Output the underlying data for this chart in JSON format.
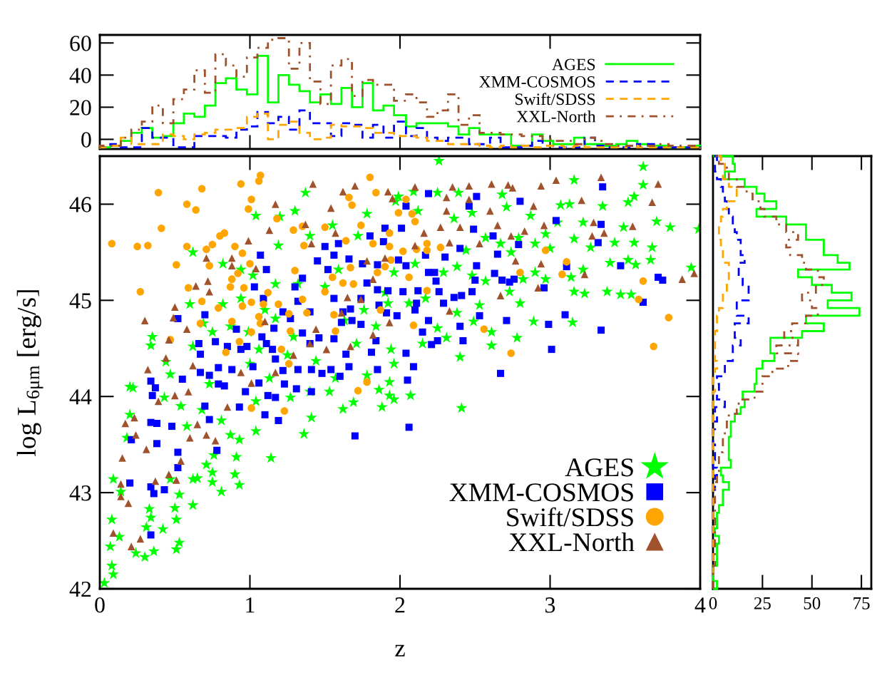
{
  "chart_data": [
    {
      "type": "histogram",
      "bins": [
        0,
        0.07,
        0.14,
        0.21,
        0.28,
        0.35,
        0.42,
        0.49,
        0.56,
        0.63,
        0.7,
        0.77,
        0.84,
        0.91,
        0.98,
        1.05,
        1.12,
        1.19,
        1.26,
        1.33,
        1.4,
        1.47,
        1.54,
        1.61,
        1.68,
        1.75,
        1.82,
        1.89,
        1.96,
        2.04,
        2.11,
        2.18,
        2.25,
        2.32,
        2.39,
        2.46,
        2.53,
        2.6,
        2.67,
        2.74,
        2.81,
        2.88,
        2.95,
        3.02,
        3.09,
        3.16,
        3.23,
        3.3,
        3.37,
        3.44,
        3.51,
        3.58,
        3.65,
        3.72,
        3.79,
        3.86,
        3.93,
        4.0
      ],
      "series": [
        {
          "name": "AGES",
          "color": "#00ff00",
          "line_style": "solid",
          "values": [
            -5,
            -4,
            -1,
            4,
            7,
            1,
            2,
            10,
            16,
            14,
            21,
            35,
            38,
            31,
            28,
            52,
            23,
            40,
            34,
            30,
            23,
            28,
            22,
            32,
            20,
            35,
            18,
            21,
            15,
            8,
            10,
            10,
            10,
            8,
            3,
            7,
            3,
            3,
            3,
            -4,
            -4,
            3,
            -1,
            -3,
            -3,
            1,
            -3,
            -3,
            -4,
            -3,
            -1,
            -3,
            -4,
            -4,
            -5,
            -5,
            -4
          ]
        },
        {
          "name": "XMM-COSMOS",
          "color": "#0000ff",
          "line_style": "dashed",
          "values": [
            -5,
            -3,
            -5,
            -5,
            7,
            1,
            1,
            -5,
            -5,
            2,
            2,
            2,
            1,
            6,
            8,
            17,
            10,
            14,
            6,
            18,
            10,
            10,
            2,
            10,
            9,
            1,
            9,
            1,
            11,
            2,
            7,
            1,
            -1,
            1,
            1,
            -3,
            -3,
            1,
            -5,
            -5,
            -4,
            -1,
            -4,
            -5,
            -5,
            -5,
            1,
            -4,
            -5,
            -5,
            -5,
            -3,
            -3,
            -5,
            -5,
            -5,
            -5
          ]
        },
        {
          "name": "Swift/SDSS",
          "color": "#ffa500",
          "line_style": "dashed",
          "values": [
            -5,
            -4,
            1,
            -3,
            -3,
            -3,
            3,
            2,
            0,
            3,
            4,
            6,
            6,
            7,
            14,
            16,
            0,
            9,
            11,
            4,
            0,
            1,
            9,
            8,
            8,
            7,
            4,
            4,
            2,
            2,
            1,
            -1,
            -1,
            -3,
            -3,
            -3,
            -4,
            -5,
            -4,
            -5,
            -4,
            -5,
            -4,
            -4,
            -5,
            -4,
            -5,
            -5,
            -5,
            -5,
            -4,
            -5,
            -5,
            -5,
            -5,
            -5,
            -5
          ]
        },
        {
          "name": "XXL-North",
          "color": "#a0522d",
          "line_style": "dashdot",
          "values": [
            -4,
            -4,
            1,
            6,
            11,
            21,
            10,
            25,
            31,
            43,
            29,
            53,
            46,
            39,
            51,
            57,
            62,
            63,
            44,
            60,
            36,
            22,
            46,
            50,
            27,
            37,
            34,
            34,
            24,
            28,
            23,
            14,
            18,
            28,
            9,
            15,
            4,
            4,
            3,
            3,
            2,
            2,
            0,
            -1,
            -1,
            -3,
            1,
            -1,
            -3,
            -4,
            -4,
            -4,
            -4,
            -3,
            -4,
            -4,
            -4
          ]
        }
      ],
      "xlim": [
        0,
        4
      ],
      "xticks": [
        {
          "value": 0,
          "label": null
        },
        {
          "value": 1,
          "label": null
        },
        {
          "value": 2,
          "label": null
        },
        {
          "value": 3,
          "label": null
        },
        {
          "value": 4,
          "label": null
        }
      ],
      "ylim": [
        -6,
        65
      ],
      "yticks": [
        0,
        20,
        40,
        60
      ],
      "tick_labels": "y",
      "legend": "right"
    },
    {
      "type": "scatter",
      "xlabel": "z",
      "ylabel": "log L$_{6μm}$ [erg/s]",
      "xlim": [
        0,
        4
      ],
      "xticks": [
        0,
        1,
        2,
        3,
        4
      ],
      "ylim": [
        42,
        46.5
      ],
      "yticks": [
        42,
        43,
        44,
        45,
        46
      ],
      "legend": "bottom right",
      "series": [
        {
          "name": "AGES",
          "color": "#00ff00",
          "marker": "star",
          "x": [
            0.03,
            0.09,
            0.08,
            0.07,
            0.13,
            0.08,
            0.09,
            0.14,
            0.24,
            0.3,
            0.36,
            0.31,
            0.42,
            0.51,
            0.53,
            0.51,
            0.53,
            0.62,
            0.5,
            0.33,
            0.34,
            0.47,
            0.62,
            0.65,
            0.75,
            0.81,
            0.9,
            0.93,
            0.91,
            0.71,
            0.75,
            0.76,
            1.14,
            1.04,
            0.93,
            1.36,
            1.41,
            1.62,
            1.69,
            1.53,
            1.27,
            0.2,
            0.22,
            0.2,
            0.18,
            0.35,
            0.34,
            0.44,
            0.47,
            0.43,
            0.54,
            0.58,
            0.68,
            0.81,
            0.87,
            0.73,
            0.62,
            0.62,
            0.82,
            0.6,
            0.69,
            0.75,
            0.87,
            0.94,
            1.02,
            1.04,
            1.2,
            1.3,
            1.19,
            1.1,
            1.17,
            1.29,
            1.25,
            1.13,
            1.0,
            1.04,
            1.4,
            1.44,
            1.57,
            1.78,
            1.86,
            1.93,
            1.88,
            1.5,
            1.59,
            1.63,
            1.71,
            1.76,
            1.84,
            1.9,
            1.72,
            1.78,
            1.55,
            1.4,
            1.32,
            1.17,
            0.94,
            0.82,
            0.99,
            1.06,
            1.37,
            1.97,
            2.26,
            3.62,
            3.16,
            2.09,
            2.25,
            2.39,
            2.68,
            1.99,
            3.35,
            3.52,
            3.62,
            3.56,
            3.13,
            3.07,
            2.87,
            2.71,
            2.48,
            2.36,
            2.12,
            3.71,
            3.8,
            3.99,
            3.49,
            3.22,
            3.05,
            3.16,
            2.97,
            2.9,
            2.79,
            2.67,
            2.57,
            2.44,
            2.74,
            3.0,
            3.27,
            3.43,
            3.56,
            3.68,
            3.52,
            3.67,
            3.57,
            3.94,
            3.4,
            3.22,
            3.14,
            2.97,
            2.9,
            2.82,
            2.73,
            3.16,
            3.23,
            3.38,
            3.47,
            3.54,
            2.57,
            2.48,
            2.38,
            2.29,
            2.1,
            1.96,
            1.92,
            2.06,
            2.17,
            2.38,
            2.53,
            2.8,
            2.89,
            3.15,
            2.78,
            2.61,
            2.49,
            2.4,
            2.31,
            2.15,
            1.94,
            1.96,
            1.93,
            2.07,
            1.96,
            2.41,
            2.25,
            2.61
          ],
          "values": [
            42.06,
            42.15,
            42.24,
            42.44,
            42.54,
            42.72,
            43.14,
            43.01,
            42.37,
            42.33,
            42.39,
            42.64,
            42.62,
            42.41,
            42.48,
            42.72,
            42.98,
            42.87,
            42.84,
            42.83,
            42.74,
            43.14,
            43.14,
            43.15,
            43.11,
            43.01,
            43.19,
            43.08,
            43.37,
            43.29,
            43.21,
            43.39,
            43.36,
            43.64,
            43.55,
            43.61,
            43.78,
            43.87,
            43.94,
            44.05,
            43.99,
            44.1,
            44.09,
            43.81,
            43.57,
            44.62,
            44.53,
            44.36,
            44.23,
            43.99,
            43.9,
            43.69,
            43.86,
            43.75,
            43.6,
            44.13,
            44.52,
            45.5,
            45.38,
            44.96,
            44.76,
            44.67,
            44.73,
            45.02,
            45.26,
            45.88,
            45.87,
            45.93,
            45.57,
            44.9,
            44.81,
            44.62,
            44.43,
            44.19,
            44.34,
            43.95,
            44.05,
            44.37,
            44.19,
            44.22,
            44.07,
            44.01,
            43.89,
            45.14,
            45.32,
            44.79,
            44.55,
            44.9,
            44.73,
            45.08,
            45.67,
            45.9,
            45.78,
            45.67,
            45.17,
            45.17,
            45.32,
            44.96,
            44.67,
            44.49,
            46.12,
            46.03,
            46.45,
            46.39,
            46.25,
            46.13,
            46.12,
            46.12,
            46.1,
            46.08,
            45.98,
            46.02,
            46.2,
            46.08,
            46.0,
            45.99,
            45.88,
            45.97,
            45.91,
            45.85,
            45.93,
            45.82,
            45.76,
            45.74,
            45.76,
            45.81,
            45.81,
            45.64,
            45.69,
            45.59,
            45.65,
            45.59,
            45.65,
            45.52,
            45.5,
            45.54,
            45.55,
            45.6,
            45.6,
            45.55,
            45.42,
            45.42,
            45.37,
            45.34,
            45.39,
            45.32,
            45.24,
            45.22,
            45.29,
            45.22,
            45.09,
            45.09,
            45.07,
            45.09,
            45.06,
            45.06,
            45.2,
            45.26,
            45.35,
            45.29,
            45.38,
            45.29,
            44.97,
            44.97,
            45.02,
            44.87,
            44.95,
            44.97,
            44.78,
            44.77,
            44.61,
            44.53,
            44.78,
            44.41,
            44.61,
            44.55,
            44.49,
            44.34,
            44.15,
            44.01,
            43.97,
            43.88,
            44.71,
            44.67
          ]
        },
        {
          "name": "XMM-COSMOS",
          "color": "#0000ff",
          "marker": "square",
          "x": [
            0.2,
            0.34,
            0.21,
            0.34,
            0.36,
            0.43,
            0.38,
            0.34,
            0.38,
            0.48,
            0.52,
            0.52,
            0.35,
            0.37,
            0.34,
            0.55,
            0.52,
            0.7,
            0.66,
            0.67,
            0.77,
            0.79,
            0.67,
            0.73,
            0.7,
            0.73,
            0.78,
            0.85,
            0.88,
            0.91,
            0.94,
            0.98,
            1.02,
            0.97,
            0.93,
            0.83,
            0.79,
            1.03,
            1.07,
            1.11,
            1.09,
            1.08,
            1.16,
            1.11,
            1.15,
            1.17,
            1.06,
            1.12,
            1.1,
            1.19,
            1.17,
            1.23,
            1.22,
            1.31,
            1.41,
            1.32,
            1.41,
            1.35,
            1.3,
            1.32,
            1.4,
            1.35,
            1.27,
            1.22,
            1.45,
            1.52,
            1.5,
            1.59,
            1.56,
            1.66,
            1.75,
            1.8,
            1.9,
            1.89,
            1.85,
            1.78,
            1.85,
            1.74,
            1.56,
            1.62,
            1.61,
            1.68,
            1.74,
            1.67,
            1.56,
            1.46,
            1.4,
            1.48,
            1.54,
            1.6,
            1.64,
            1.66,
            1.84,
            1.81,
            1.85,
            1.7,
            1.86,
            1.91,
            2.04,
            2.01,
            2.19,
            2.51,
            2.46,
            2.8,
            3.04,
            3.34,
            3.35,
            2.49,
            2.62,
            2.79,
            2.4,
            2.3,
            2.17,
            1.99,
            2.04,
            2.65,
            2.51,
            2.63,
            2.68,
            2.73,
            2.76,
            2.5,
            2.48,
            2.41,
            2.36,
            2.19,
            2.23,
            2.24,
            2.12,
            2.26,
            2.29,
            2.11,
            1.92,
            2.02,
            1.98,
            2.1,
            2.15,
            2.19,
            2.4,
            2.42,
            2.25,
            2.21,
            2.53,
            2.71,
            2.96,
            3.1,
            2.99,
            3.01,
            3.11,
            3.32,
            3.47,
            3.72,
            3.75,
            3.62,
            3.34,
            2.67,
            2.04,
            2.09,
            2.05,
            2.06
          ],
          "values": [
            43.1,
            42.56,
            43.55,
            43.06,
            42.99,
            43.03,
            43.51,
            43.73,
            43.72,
            43.69,
            43.42,
            43.26,
            44.01,
            44.09,
            44.16,
            44.18,
            44.81,
            44.85,
            44.55,
            44.44,
            44.57,
            44.3,
            44.25,
            44.22,
            43.9,
            43.76,
            43.44,
            44.52,
            44.28,
            44.7,
            44.49,
            44.52,
            44.31,
            44.05,
            43.89,
            44.11,
            44.13,
            45.14,
            45.47,
            45.32,
            45.02,
            44.62,
            44.71,
            44.55,
            44.49,
            44.39,
            44.14,
            44.01,
            43.81,
            43.75,
            43.99,
            44.13,
            44.27,
            44.08,
            44.05,
            44.28,
            44.28,
            45.23,
            45.14,
            44.99,
            44.88,
            44.66,
            44.81,
            44.88,
            45.41,
            45.32,
            45.56,
            45.59,
            45.47,
            45.43,
            45.38,
            45.67,
            45.75,
            45.61,
            45.37,
            45.18,
            45.11,
            45.02,
            45.02,
            44.88,
            44.77,
            44.79,
            44.75,
            44.91,
            44.6,
            44.61,
            44.55,
            44.24,
            44.28,
            44.21,
            44.44,
            44.31,
            44.58,
            44.46,
            44.28,
            43.59,
            44.95,
            44.87,
            45.98,
            45.75,
            46.11,
            46.08,
            45.98,
            46.03,
            45.83,
            45.79,
            46.18,
            45.74,
            45.67,
            45.58,
            45.54,
            45.45,
            45.47,
            45.42,
            45.36,
            45.48,
            45.36,
            45.28,
            45.21,
            45.19,
            45.22,
            45.21,
            45.09,
            45.05,
            45.03,
            45.29,
            45.29,
            45.2,
            45.1,
            45.09,
            44.97,
            44.97,
            45.1,
            45.09,
            44.84,
            44.9,
            44.67,
            44.79,
            44.73,
            44.58,
            44.58,
            44.54,
            44.84,
            44.79,
            45.13,
            44.85,
            44.75,
            44.49,
            45.35,
            45.6,
            45.36,
            45.24,
            45.21,
            44.98,
            44.69,
            44.24,
            44.45,
            44.31,
            44.17,
            43.68
          ]
        },
        {
          "name": "Swift/SDSS",
          "color": "#ffa500",
          "marker": "circle",
          "x": [
            0.08,
            0.25,
            0.32,
            0.39,
            0.41,
            0.27,
            0.51,
            0.58,
            0.64,
            0.68,
            0.58,
            0.71,
            0.75,
            0.73,
            0.59,
            0.68,
            0.67,
            0.47,
            0.8,
            0.83,
            0.9,
            0.94,
            1.01,
            0.99,
            1.07,
            1.06,
            0.95,
            1.0,
            0.88,
            0.87,
            0.92,
            0.96,
            0.79,
            0.95,
            1.01,
            1.09,
            1.06,
            1.07,
            1.01,
            0.88,
            0.93,
            0.84,
            1.01,
            1.23,
            1.18,
            1.29,
            1.35,
            1.5,
            1.36,
            1.3,
            1.35,
            1.38,
            1.27,
            1.21,
            1.26,
            1.12,
            1.19,
            1.26,
            1.55,
            1.5,
            1.56,
            1.57,
            1.62,
            1.67,
            1.69,
            1.64,
            1.78,
            1.72,
            1.8,
            1.84,
            1.66,
            1.68,
            1.74,
            1.82,
            1.85,
            1.9,
            1.93,
            1.87,
            2.04,
            1.99,
            2.08,
            2.1,
            1.93,
            2.02,
            2.11,
            2.18,
            2.18,
            2.27,
            1.94,
            2.06,
            2.18,
            2.09,
            2.56,
            2.74,
            2.8,
            2.97,
            3.08,
            3.11,
            3.62,
            3.59,
            3.79,
            3.69
          ],
          "values": [
            45.59,
            45.56,
            45.57,
            46.12,
            45.75,
            45.09,
            45.37,
            46.0,
            45.94,
            46.16,
            45.56,
            45.53,
            45.58,
            45.36,
            45.13,
            44.99,
            44.76,
            44.59,
            45.67,
            45.7,
            45.56,
            46.21,
            46.05,
            45.95,
            46.3,
            46.24,
            45.49,
            45.38,
            45.22,
            45.14,
            45.28,
            45.13,
            44.92,
            44.94,
            44.98,
            44.96,
            44.83,
            44.76,
            44.67,
            44.78,
            44.57,
            44.46,
            43.88,
            43.85,
            45.85,
            45.73,
            45.77,
            45.76,
            45.57,
            45.31,
            45.01,
            44.87,
            44.68,
            44.49,
            44.34,
            45.08,
            44.96,
            44.86,
            45.24,
            45.09,
            44.85,
            44.68,
            45.18,
            45.34,
            45.17,
            45.62,
            44.15,
            44.06,
            46.28,
            46.12,
            46.07,
            45.99,
            45.78,
            45.59,
            45.29,
            45.35,
            45.7,
            44.9,
            46.05,
            45.91,
            45.9,
            45.82,
            45.56,
            45.51,
            45.53,
            45.59,
            45.52,
            45.55,
            45.42,
            45.24,
            45.1,
            44.74,
            44.7,
            44.45,
            45.29,
            45.52,
            45.27,
            45.4,
            45.2,
            45.01,
            44.82,
            44.52
          ]
        },
        {
          "name": "XXL-North",
          "color": "#a0522d",
          "marker": "triangle",
          "x": [
            0.09,
            0.14,
            0.14,
            0.19,
            0.15,
            0.17,
            0.21,
            0.27,
            0.23,
            0.3,
            0.32,
            0.24,
            0.31,
            0.37,
            0.46,
            0.51,
            0.39,
            0.5,
            0.44,
            0.49,
            0.46,
            0.5,
            0.58,
            0.64,
            0.71,
            0.72,
            0.73,
            0.88,
            0.88,
            0.99,
            1.17,
            1.42,
            1.54,
            1.62,
            1.7,
            1.92,
            1.37,
            1.41,
            1.57,
            1.13,
            1.04,
            1.1,
            0.62,
            0.59,
            0.65,
            0.77,
            0.6,
            0.71,
            0.54,
            0.85,
            0.94,
            1.01,
            1.17,
            1.29,
            1.4,
            1.44,
            1.51,
            1.61,
            1.65,
            1.74,
            1.82,
            1.78,
            1.9,
            1.95,
            1.93,
            1.82,
            1.67,
            2.1,
            2.31,
            2.35,
            2.46,
            2.61,
            2.72,
            2.75,
            2.94,
            3.04,
            3.34,
            3.72,
            3.68,
            3.21,
            2.89,
            2.6,
            2.46,
            2.31,
            2.4,
            2.27,
            2.16,
            2.96,
            3.29,
            3.55,
            3.36,
            3.28,
            2.83,
            2.74,
            2.65,
            2.53,
            2.33,
            2.1,
            2.77,
            2.94,
            3.23,
            2.92,
            2.67,
            2.33,
            3.88,
            3.96
          ],
          "values": [
            42.58,
            43.09,
            42.96,
            42.89,
            43.36,
            43.72,
            42.44,
            42.52,
            43.78,
            44.79,
            44.28,
            43.6,
            43.45,
            43.12,
            43.19,
            43.13,
            43.95,
            44.01,
            44.4,
            44.82,
            44.59,
            44.93,
            44.7,
            45.15,
            45.44,
            45.2,
            45.09,
            45.44,
            45.36,
            45.62,
            46.0,
            46.21,
            45.96,
            46.13,
            46.19,
            46.13,
            45.79,
            45.59,
            45.7,
            45.73,
            45.33,
            44.78,
            44.32,
            44.05,
            43.71,
            43.54,
            43.57,
            43.6,
            43.33,
            43.89,
            44.25,
            44.14,
            44.25,
            44.43,
            44.55,
            44.7,
            44.49,
            44.87,
            45.03,
            45.01,
            45.22,
            45.41,
            45.44,
            46.06,
            44.77,
            44.64,
            44.52,
            46.18,
            46.07,
            46.18,
            46.19,
            46.21,
            46.2,
            46.17,
            46.19,
            46.25,
            46.28,
            46.21,
            46.02,
            46.04,
            45.98,
            45.93,
            46.05,
            45.93,
            45.76,
            45.76,
            45.7,
            45.78,
            45.81,
            45.77,
            45.7,
            45.67,
            45.72,
            45.67,
            45.78,
            45.59,
            45.6,
            45.57,
            45.41,
            45.38,
            45.27,
            45.13,
            45.05,
            44.89,
            45.22,
            45.28
          ]
        }
      ]
    },
    {
      "type": "histogram",
      "orientation": "horizontal",
      "bins": [
        42,
        42.08,
        42.16,
        42.24,
        42.32,
        42.39,
        42.47,
        42.55,
        42.63,
        42.71,
        42.79,
        42.87,
        42.95,
        43.03,
        43.11,
        43.18,
        43.26,
        43.34,
        43.42,
        43.5,
        43.58,
        43.66,
        43.74,
        43.82,
        43.89,
        43.97,
        44.05,
        44.13,
        44.21,
        44.29,
        44.37,
        44.45,
        44.53,
        44.61,
        44.68,
        44.76,
        44.84,
        44.92,
        45,
        45.08,
        45.16,
        45.24,
        45.32,
        45.39,
        45.47,
        45.55,
        45.63,
        45.71,
        45.79,
        45.87,
        45.95,
        46.03,
        46.11,
        46.18,
        46.26,
        46.34,
        46.42,
        46.5
      ],
      "series": [
        {
          "color": "#00ff00",
          "line_style": "solid",
          "values": [
            2,
            0,
            0,
            2,
            2,
            2,
            3,
            1,
            2,
            2,
            3,
            5,
            5,
            8,
            5,
            4,
            9,
            8,
            8,
            8,
            9,
            9,
            11,
            14,
            16,
            15,
            21,
            22,
            22,
            25,
            31,
            29,
            29,
            45,
            56,
            47,
            74,
            58,
            70,
            60,
            50,
            43,
            69,
            63,
            56,
            56,
            47,
            47,
            37,
            22,
            32,
            26,
            22,
            16,
            6,
            11,
            10
          ]
        },
        {
          "color": "#0000ff",
          "line_style": "dashed",
          "values": [
            0,
            0,
            0,
            0,
            0,
            0,
            0,
            0,
            0,
            0,
            0,
            0,
            0,
            1,
            1,
            2,
            0,
            1,
            1,
            0,
            0,
            1,
            2,
            1,
            6,
            2,
            3,
            2,
            6,
            6,
            10,
            10,
            14,
            11,
            11,
            18,
            12,
            12,
            18,
            18,
            15,
            13,
            13,
            16,
            14,
            14,
            12,
            11,
            10,
            8,
            7,
            6,
            5,
            4,
            2,
            1,
            2
          ]
        },
        {
          "color": "#ffa500",
          "line_style": "dashed",
          "values": [
            0,
            0,
            0,
            0,
            0,
            0,
            0,
            0,
            0,
            0,
            0,
            0,
            0,
            0,
            0,
            0,
            0,
            0,
            0,
            0,
            0,
            0,
            0,
            0,
            0,
            0,
            1,
            0,
            1,
            2,
            1,
            1,
            1,
            1,
            2,
            2,
            3,
            5,
            5,
            7,
            8,
            8,
            8,
            5,
            5,
            4,
            3,
            3,
            4,
            5,
            7,
            12,
            12,
            8,
            5,
            6,
            4
          ]
        },
        {
          "color": "#a0522d",
          "line_style": "dashdot",
          "values": [
            0,
            0,
            0,
            1,
            1,
            1,
            1,
            1,
            1,
            1,
            1,
            1,
            1,
            1,
            2,
            3,
            3,
            3,
            5,
            5,
            6,
            7,
            8,
            12,
            13,
            21,
            25,
            25,
            30,
            38,
            43,
            32,
            43,
            36,
            40,
            47,
            53,
            50,
            45,
            52,
            56,
            53,
            47,
            45,
            39,
            37,
            43,
            37,
            32,
            26,
            24,
            20,
            17,
            12,
            8,
            7,
            3
          ]
        }
      ],
      "xlim": [
        0,
        80
      ],
      "xticks": [
        0,
        25,
        50,
        75
      ],
      "ylim": [
        42,
        46.5
      ],
      "tick_labels": "x"
    }
  ]
}
